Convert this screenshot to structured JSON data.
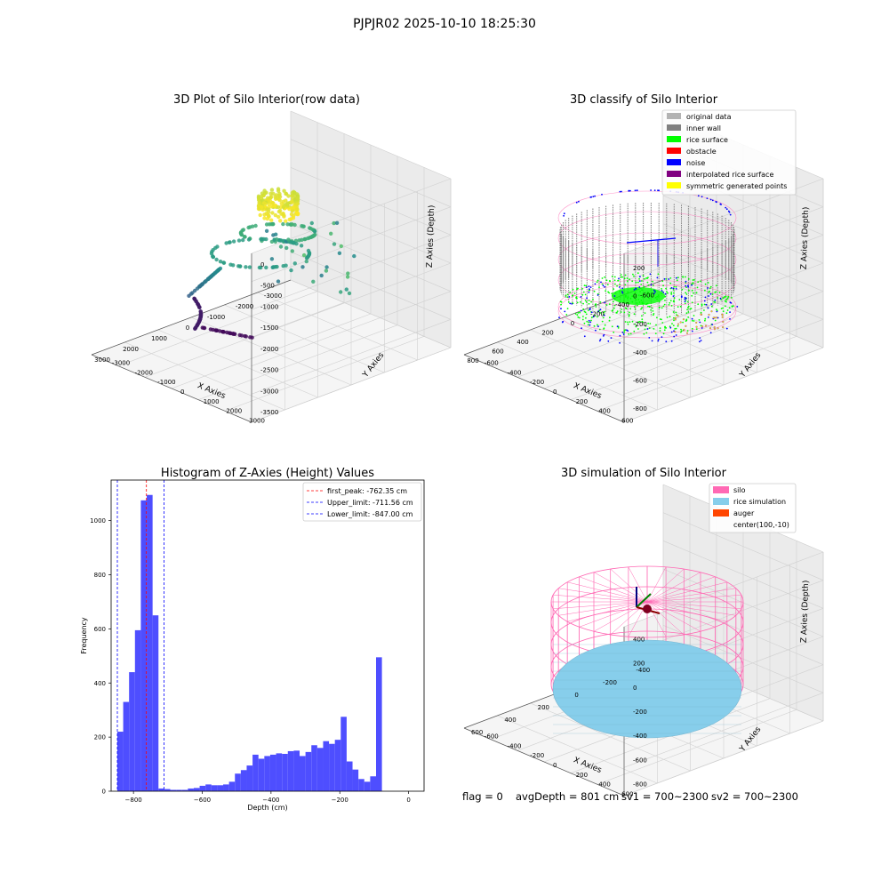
{
  "suptitle": "PJPJR02 2025-10-10 18:25:30",
  "footer": {
    "flag": "flag = 0",
    "avg_depth": "avgDepth = 801 cm",
    "sv1": "sv1 = 700~2300",
    "sv2": "sv2 = 700~2300"
  },
  "colors": {
    "original": "#b3b3b3",
    "inner_wall": "#808080",
    "rice_surface": "#00ff00",
    "obstacle": "#ff0000",
    "noise": "#0000ff",
    "interpolated": "#800080",
    "symmetric": "#ffff00",
    "silo": "#ff69b4",
    "rice_sim": "#87ceeb",
    "auger": "#ff4500",
    "hist_bar": "#4a4aff"
  },
  "chart_data": [
    {
      "type": "scatter",
      "title": "3D Plot of Silo Interior(row data)",
      "xlabel": "X Axies",
      "ylabel": "Y Axies",
      "zlabel": "Z Axies (Depth)",
      "x_ticks": [
        "-3000",
        "-2000",
        "-1000",
        "0",
        "1000",
        "2000",
        "3000"
      ],
      "y_ticks": [
        "-3000",
        "-2000",
        "-1000",
        "0",
        "1000",
        "2000",
        "3000"
      ],
      "z_ticks": [
        "0",
        "-500",
        "-1000",
        "-1500",
        "-2000",
        "-2500",
        "-3000",
        "-3500"
      ],
      "xlim": [
        -3300,
        3300
      ],
      "ylim": [
        -3300,
        3300
      ],
      "zlim": [
        -3800,
        200
      ],
      "colormap": "viridis"
    },
    {
      "type": "scatter",
      "title": "3D classify of Silo Interior",
      "xlabel": "X Axies",
      "ylabel": "Y Axies",
      "zlabel": "Z Axies (Depth)",
      "x_ticks": [
        "-600",
        "-400",
        "-200",
        "0",
        "200",
        "400",
        "600",
        "800"
      ],
      "y_ticks": [
        "-600",
        "-400",
        "-200",
        "0",
        "200",
        "400",
        "600"
      ],
      "z_ticks": [
        "200",
        "0",
        "-200",
        "-400",
        "-600",
        "-800"
      ],
      "legend": [
        "original data",
        "inner wall",
        "rice surface",
        "obstacle",
        "noise",
        "interpolated rice surface",
        "symmetric generated points"
      ],
      "legend_loc": "top-right"
    },
    {
      "type": "bar",
      "title": "Histogram of Z-Axies (Height) Values",
      "xlabel": "Depth (cm)",
      "ylabel": "Frequency",
      "x_ticks": [
        -800,
        -600,
        -400,
        -200,
        0
      ],
      "y_ticks": [
        0,
        200,
        400,
        600,
        800,
        1000
      ],
      "xlim": [
        -865,
        45
      ],
      "ylim": [
        0,
        1150
      ],
      "bin_start": -847,
      "bin_width": 17.1,
      "values": [
        220,
        330,
        440,
        595,
        1075,
        1095,
        650,
        10,
        8,
        5,
        5,
        5,
        10,
        12,
        20,
        25,
        22,
        22,
        25,
        35,
        65,
        78,
        95,
        135,
        120,
        130,
        135,
        140,
        138,
        148,
        150,
        130,
        145,
        170,
        160,
        185,
        175,
        190,
        275,
        110,
        80,
        45,
        35,
        55,
        495
      ],
      "reference_lines": [
        {
          "label": "first_peak: -762.35 cm",
          "value": -762.35,
          "color": "#ff0000"
        },
        {
          "label": "Upper_limit: -711.56 cm",
          "value": -711.56,
          "color": "#0000ff"
        },
        {
          "label": "Lower_limit: -847.00 cm",
          "value": -847.0,
          "color": "#0000ff"
        }
      ],
      "legend_loc": "top-right"
    },
    {
      "type": "scatter",
      "title": "3D simulation of Silo Interior",
      "xlabel": "X Axies",
      "ylabel": "Y Axies",
      "zlabel": "Z Axies (Depth)",
      "x_ticks": [
        "-400",
        "-200",
        "0",
        "200",
        "400",
        "600"
      ],
      "y_ticks": [
        "-600",
        "-400",
        "-200",
        "0",
        "200",
        "400",
        "600"
      ],
      "z_ticks": [
        "400",
        "200",
        "0",
        "-200",
        "-400",
        "-600",
        "-800"
      ],
      "legend": [
        "silo",
        "rice simulation",
        "auger",
        "center(100,-10)"
      ],
      "legend_loc": "top-right"
    }
  ]
}
